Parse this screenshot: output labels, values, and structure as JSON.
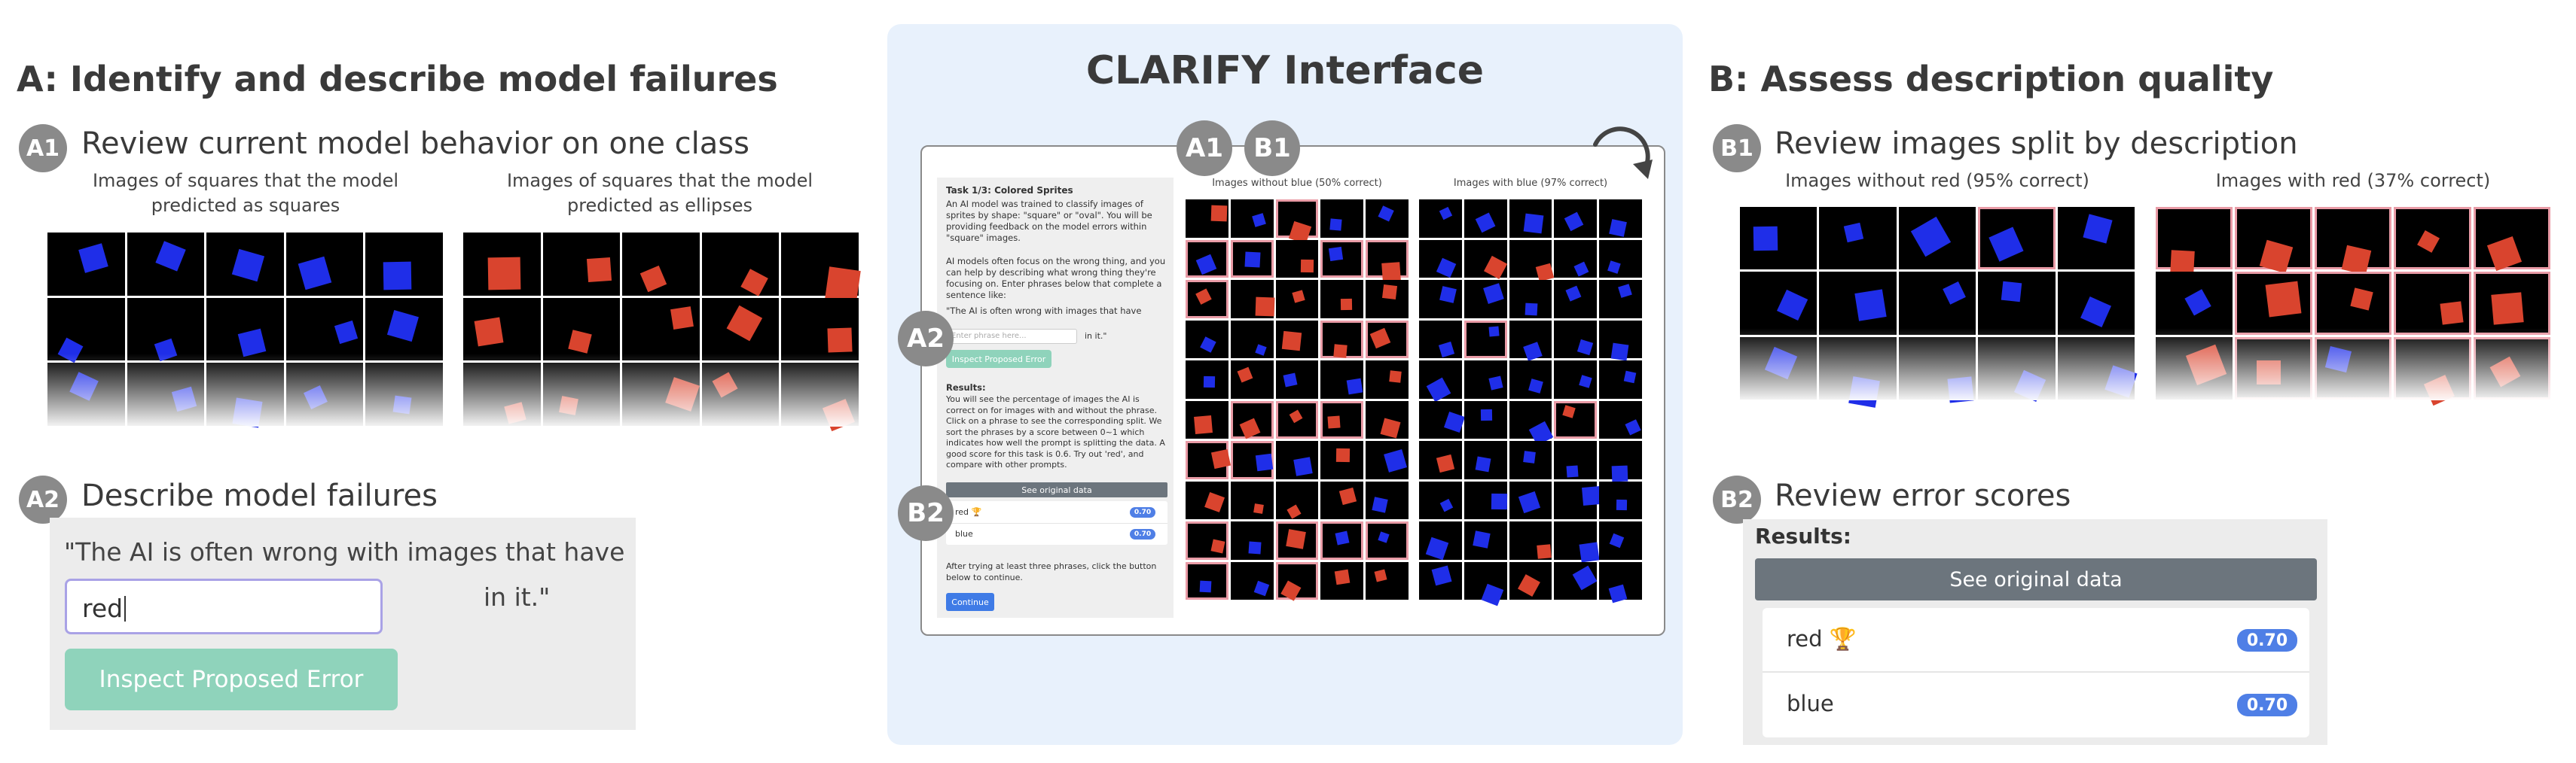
{
  "panel_a": {
    "title": "A: Identify and describe model failures",
    "badge_a1": "A1",
    "a1_title": "Review current model behavior on one class",
    "caption_left": "Images of squares that the model predicted as squares",
    "caption_right": "Images of squares that the model predicted as ellipses",
    "badge_a2": "A2",
    "a2_title": "Describe model failures",
    "sentence_start": "\"The AI is often wrong with images that have",
    "phrase_value": "red",
    "sentence_end": "in it.\"",
    "inspect_button": "Inspect Proposed Error"
  },
  "panel_center": {
    "title": "CLARIFY Interface",
    "badge_a1": "A1",
    "badge_b1": "B1",
    "badge_a2": "A2",
    "badge_b2": "B2",
    "task_title": "Task 1/3: Colored Sprites",
    "task_p1": "An AI model was trained to classify images of sprites by shape: \"square\" or \"oval\". You will be providing feedback on the model errors within \"square\" images.",
    "task_p2": "AI models often focus on the wrong thing, and you can help by describing what wrong thing they're focusing on. Enter phrases below that complete a sentence like:",
    "task_sentence": "\"The AI is often wrong with images that have",
    "phrase_placeholder": "Enter phrase here...",
    "task_in_it": "in it.\"",
    "inspect_button": "Inspect Proposed Error",
    "results_label": "Results:",
    "results_text": "You will see the percentage of images the AI is correct on for images with and without the phrase. Click on a phrase to see the corresponding split. We sort the phrases by a score between 0~1 which indicates how well the prompt is splitting the data. A good score for this task is 0.6. Try out 'red', and compare with other prompts.",
    "see_original": "See original data",
    "rows": [
      {
        "label": "red 🏆",
        "score": "0.70"
      },
      {
        "label": "blue",
        "score": "0.70"
      }
    ],
    "after_text": "After trying at least three phrases, click the button below to continue.",
    "continue_button": "Continue",
    "grid_left_caption": "Images without blue (50% correct)",
    "grid_right_caption": "Images with blue (97% correct)"
  },
  "panel_b": {
    "title": "B: Assess description quality",
    "badge_b1": "B1",
    "b1_title": "Review images split by description",
    "caption_left": "Images without red (95% correct)",
    "caption_right": "Images with red (37% correct)",
    "badge_b2": "B2",
    "b2_title": "Review error scores",
    "results_label": "Results:",
    "see_original": "See original data",
    "rows": [
      {
        "label": "red 🏆",
        "score": "0.70"
      },
      {
        "label": "blue",
        "score": "0.70"
      }
    ]
  },
  "colors": {
    "sprite_blue": "#1f2ee8",
    "sprite_red": "#d9442e",
    "highlight_pink": "#e99ba6",
    "badge_gray": "#8a8a8a",
    "score_blue": "#4f7fe6",
    "inspect_green": "#8fd3bb",
    "center_bg": "#e8f1fc"
  },
  "icons": {
    "refresh": "refresh-arrow-icon",
    "trophy": "trophy-icon"
  }
}
